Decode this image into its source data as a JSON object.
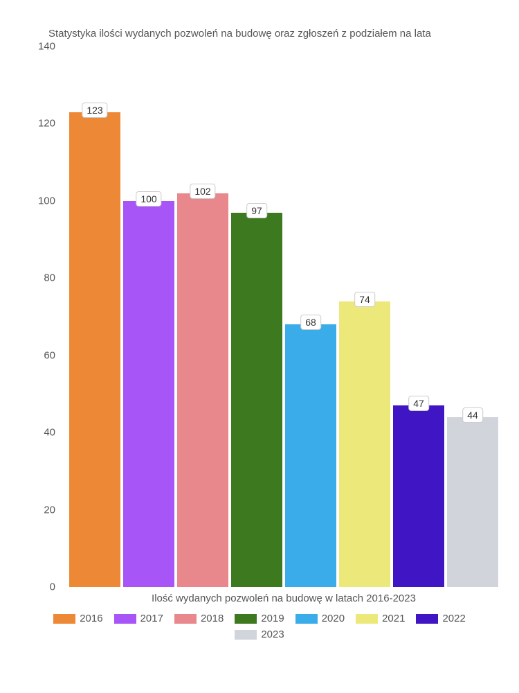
{
  "chart": {
    "type": "bar",
    "title": "Statystyka ilości wydanych pozwoleń na budowę oraz zgłoszeń z podziałem na lata",
    "xlabel": "Ilość wydanych pozwoleń na budowę w latach 2016-2023",
    "ylim": [
      0,
      140
    ],
    "ytick_step": 20,
    "yticks": [
      0,
      20,
      40,
      60,
      80,
      100,
      120,
      140
    ],
    "background_color": "#ffffff",
    "text_color": "#555555",
    "label_bg": "#ffffff",
    "label_border": "#cccccc",
    "title_fontsize": 15,
    "axis_fontsize": 15,
    "label_fontsize": 14,
    "series": [
      {
        "year": "2016",
        "value": 123,
        "color": "#ed8936"
      },
      {
        "year": "2017",
        "value": 100,
        "color": "#a855f7"
      },
      {
        "year": "2018",
        "value": 102,
        "color": "#e8888c"
      },
      {
        "year": "2019",
        "value": 97,
        "color": "#3d7a1f"
      },
      {
        "year": "2020",
        "value": 68,
        "color": "#3bacea"
      },
      {
        "year": "2021",
        "value": 74,
        "color": "#ece97a"
      },
      {
        "year": "2022",
        "value": 47,
        "color": "#4015c4"
      },
      {
        "year": "2023",
        "value": 44,
        "color": "#d1d5db"
      }
    ]
  }
}
